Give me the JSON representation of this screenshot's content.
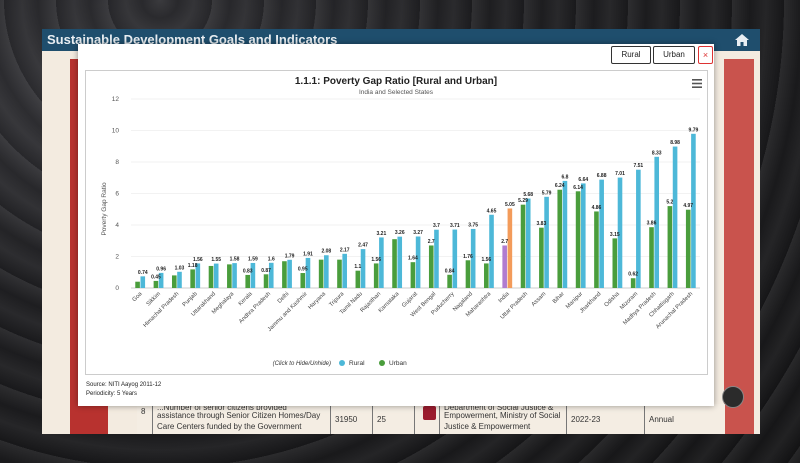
{
  "app": {
    "title": "Sustainable Development Goals and Indicators"
  },
  "background_table": {
    "row_number": "8",
    "indicator_text": "assistance through Senior Citizen Homes/Day Care Centers funded by the Government",
    "indicator_text_top": "...Number of senior citizens provided institutional",
    "value": "31950",
    "count": "25",
    "ministry": "Empowerment, Ministry of Social Justice & Empowerment",
    "ministry_top": "Department of Social Justice &",
    "year": "2022-23",
    "periodicity": "Annual"
  },
  "modal": {
    "rural_btn": "Rural",
    "urban_btn": "Urban",
    "close_btn": "×",
    "source": "Source: NITI Aayog 2011-12",
    "periodicity": "Periodicity: 5 Years"
  },
  "chart_data": {
    "type": "bar",
    "title": "1.1.1: Poverty Gap Ratio [Rural and Urban]",
    "subtitle": "India and Selected States",
    "ylabel": "Poverty Gap Ratio",
    "xlabel": "",
    "ylim": [
      0,
      12
    ],
    "yticks": [
      0,
      2,
      4,
      6,
      8,
      10,
      12
    ],
    "legend_hint": "(Click to Hide/Unhide)",
    "legend_position": "bottom",
    "colors": {
      "rural": "#4db8d8",
      "urban": "#4a9d3c",
      "india_rural": "#f39b5a",
      "india_urban": "#b07cd0"
    },
    "categories": [
      "Goa",
      "Sikkim",
      "Himachal Pradesh",
      "Punjab",
      "Uttarakhand",
      "Meghalaya",
      "Kerala",
      "Andhra Pradesh",
      "Delhi",
      "Jammu and Kashmir",
      "Haryana",
      "Tripura",
      "Tamil Nadu",
      "Rajasthan",
      "Karnataka",
      "Gujarat",
      "West Bengal",
      "Puducherry",
      "Nagaland",
      "Maharashtra",
      "India",
      "Uttar Pradesh",
      "Assam",
      "Bihar",
      "Manipur",
      "Jharkhand",
      "Odisha",
      "Mizoram",
      "Madhya Pradesh",
      "Chhattisgarh",
      "Arunachal Pradesh"
    ],
    "series": [
      {
        "name": "Rural",
        "values": [
          0.74,
          0.96,
          1.03,
          1.56,
          1.55,
          1.58,
          1.59,
          1.6,
          1.79,
          1.91,
          2.08,
          2.17,
          2.47,
          3.21,
          3.26,
          3.27,
          3.7,
          3.71,
          3.75,
          4.65,
          5.05,
          5.68,
          5.79,
          6.8,
          6.64,
          6.88,
          7.01,
          7.51,
          8.33,
          8.98,
          9.79
        ]
      },
      {
        "name": "Urban",
        "values": [
          0.4,
          0.45,
          0.8,
          1.18,
          1.4,
          1.5,
          0.83,
          0.87,
          1.7,
          0.95,
          1.8,
          1.8,
          1.1,
          1.56,
          3.1,
          1.64,
          2.7,
          0.84,
          1.76,
          1.56,
          2.7,
          5.29,
          3.83,
          6.24,
          6.14,
          4.86,
          3.15,
          0.62,
          3.86,
          5.2,
          4.97
        ]
      }
    ],
    "point_labels": {
      "Rural": [
        "0.74",
        "0.96",
        "1.03",
        "1.56",
        "1.55",
        "1.58",
        "1.59",
        "1.6",
        "1.79",
        "1.91",
        "2.08",
        "2.17",
        "2.47",
        "3.21",
        "3.26",
        "3.27",
        "3.7",
        "3.71",
        "3.75",
        "4.65",
        "5.05",
        "5.68",
        "5.79",
        "6.8",
        "6.64",
        "6.88",
        "7.01",
        "7.51",
        "8.33",
        "8.98",
        "9.79"
      ],
      "Urban": [
        "",
        "0.45",
        "",
        "1.18",
        "",
        "",
        "0.83",
        "0.87",
        "",
        "0.95",
        "",
        "",
        "1.1",
        "1.56",
        "",
        "1.64",
        "2.7",
        "0.84",
        "1.76",
        "1.56",
        "2.7",
        "5.29",
        "3.83",
        "6.24",
        "6.14",
        "4.86",
        "3.15",
        "0.62",
        "3.86",
        "5.2",
        "4.97"
      ]
    }
  }
}
